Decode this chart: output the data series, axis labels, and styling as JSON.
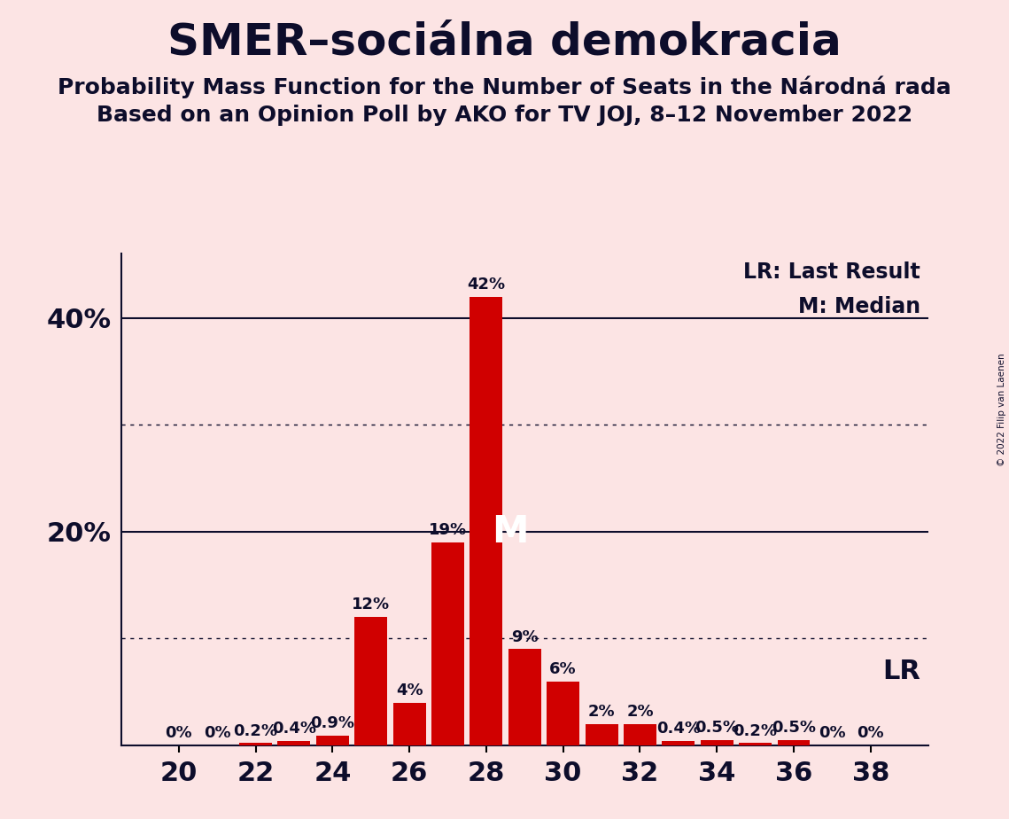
{
  "title": "SMER–sociálna demokracia",
  "subtitle1": "Probability Mass Function for the Number of Seats in the Národná rada",
  "subtitle2": "Based on an Opinion Poll by AKO for TV JOJ, 8–12 November 2022",
  "copyright": "© 2022 Filip van Laenen",
  "seats": [
    20,
    21,
    22,
    23,
    24,
    25,
    26,
    27,
    28,
    29,
    30,
    31,
    32,
    33,
    34,
    35,
    36,
    37,
    38
  ],
  "probabilities": [
    0.0,
    0.0,
    0.2,
    0.4,
    0.9,
    12.0,
    4.0,
    19.0,
    42.0,
    9.0,
    6.0,
    2.0,
    2.0,
    0.4,
    0.5,
    0.2,
    0.5,
    0.0,
    0.0
  ],
  "labels": [
    "0%",
    "0%",
    "0.2%",
    "0.4%",
    "0.9%",
    "12%",
    "4%",
    "19%",
    "42%",
    "9%",
    "6%",
    "2%",
    "2%",
    "0.4%",
    "0.5%",
    "0.2%",
    "0.5%",
    "0%",
    "0%"
  ],
  "bar_color": "#d00000",
  "background_color": "#fce4e4",
  "median_seat": 28,
  "xlabel_seats": [
    20,
    22,
    24,
    26,
    28,
    30,
    32,
    34,
    36,
    38
  ],
  "ylim": [
    0,
    46
  ],
  "legend_lr": "LR: Last Result",
  "legend_m": "M: Median",
  "lr_label": "LR",
  "title_fontsize": 36,
  "subtitle_fontsize": 18,
  "axis_label_fontsize": 22,
  "bar_label_fontsize": 13,
  "legend_fontsize": 17
}
